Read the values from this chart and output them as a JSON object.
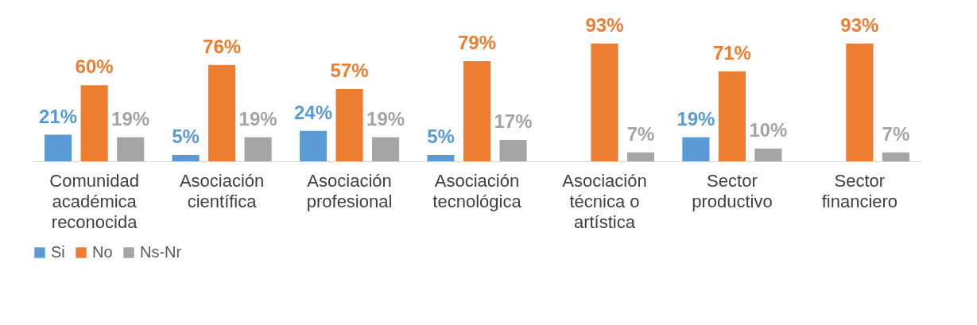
{
  "chart_data": {
    "type": "bar",
    "categories": [
      "Comunidad académica reconocida",
      "Asociación científica",
      "Asociación profesional",
      "Asociación tecnológica",
      "Asociación técnica o artística",
      "Sector productivo",
      "Sector financiero"
    ],
    "series": [
      {
        "name": "Si",
        "color": "#5b9bd5",
        "values": [
          21,
          5,
          24,
          5,
          0,
          19,
          0
        ],
        "value_labels": [
          "21%",
          "5%",
          "24%",
          "5%",
          null,
          "19%",
          null
        ]
      },
      {
        "name": "No",
        "color": "#ed7d31",
        "values": [
          60,
          76,
          57,
          79,
          93,
          71,
          93
        ],
        "value_labels": [
          "60%",
          "76%",
          "57%",
          "79%",
          "93%",
          "71%",
          "93%"
        ]
      },
      {
        "name": "Ns-Nr",
        "color": "#a5a5a5",
        "values": [
          19,
          19,
          19,
          17,
          7,
          10,
          7
        ],
        "value_labels": [
          "19%",
          "19%",
          "19%",
          "17%",
          "7%",
          "10%",
          "7%"
        ]
      }
    ],
    "legend": "bottom",
    "grid": false,
    "tick_labels": "x"
  }
}
